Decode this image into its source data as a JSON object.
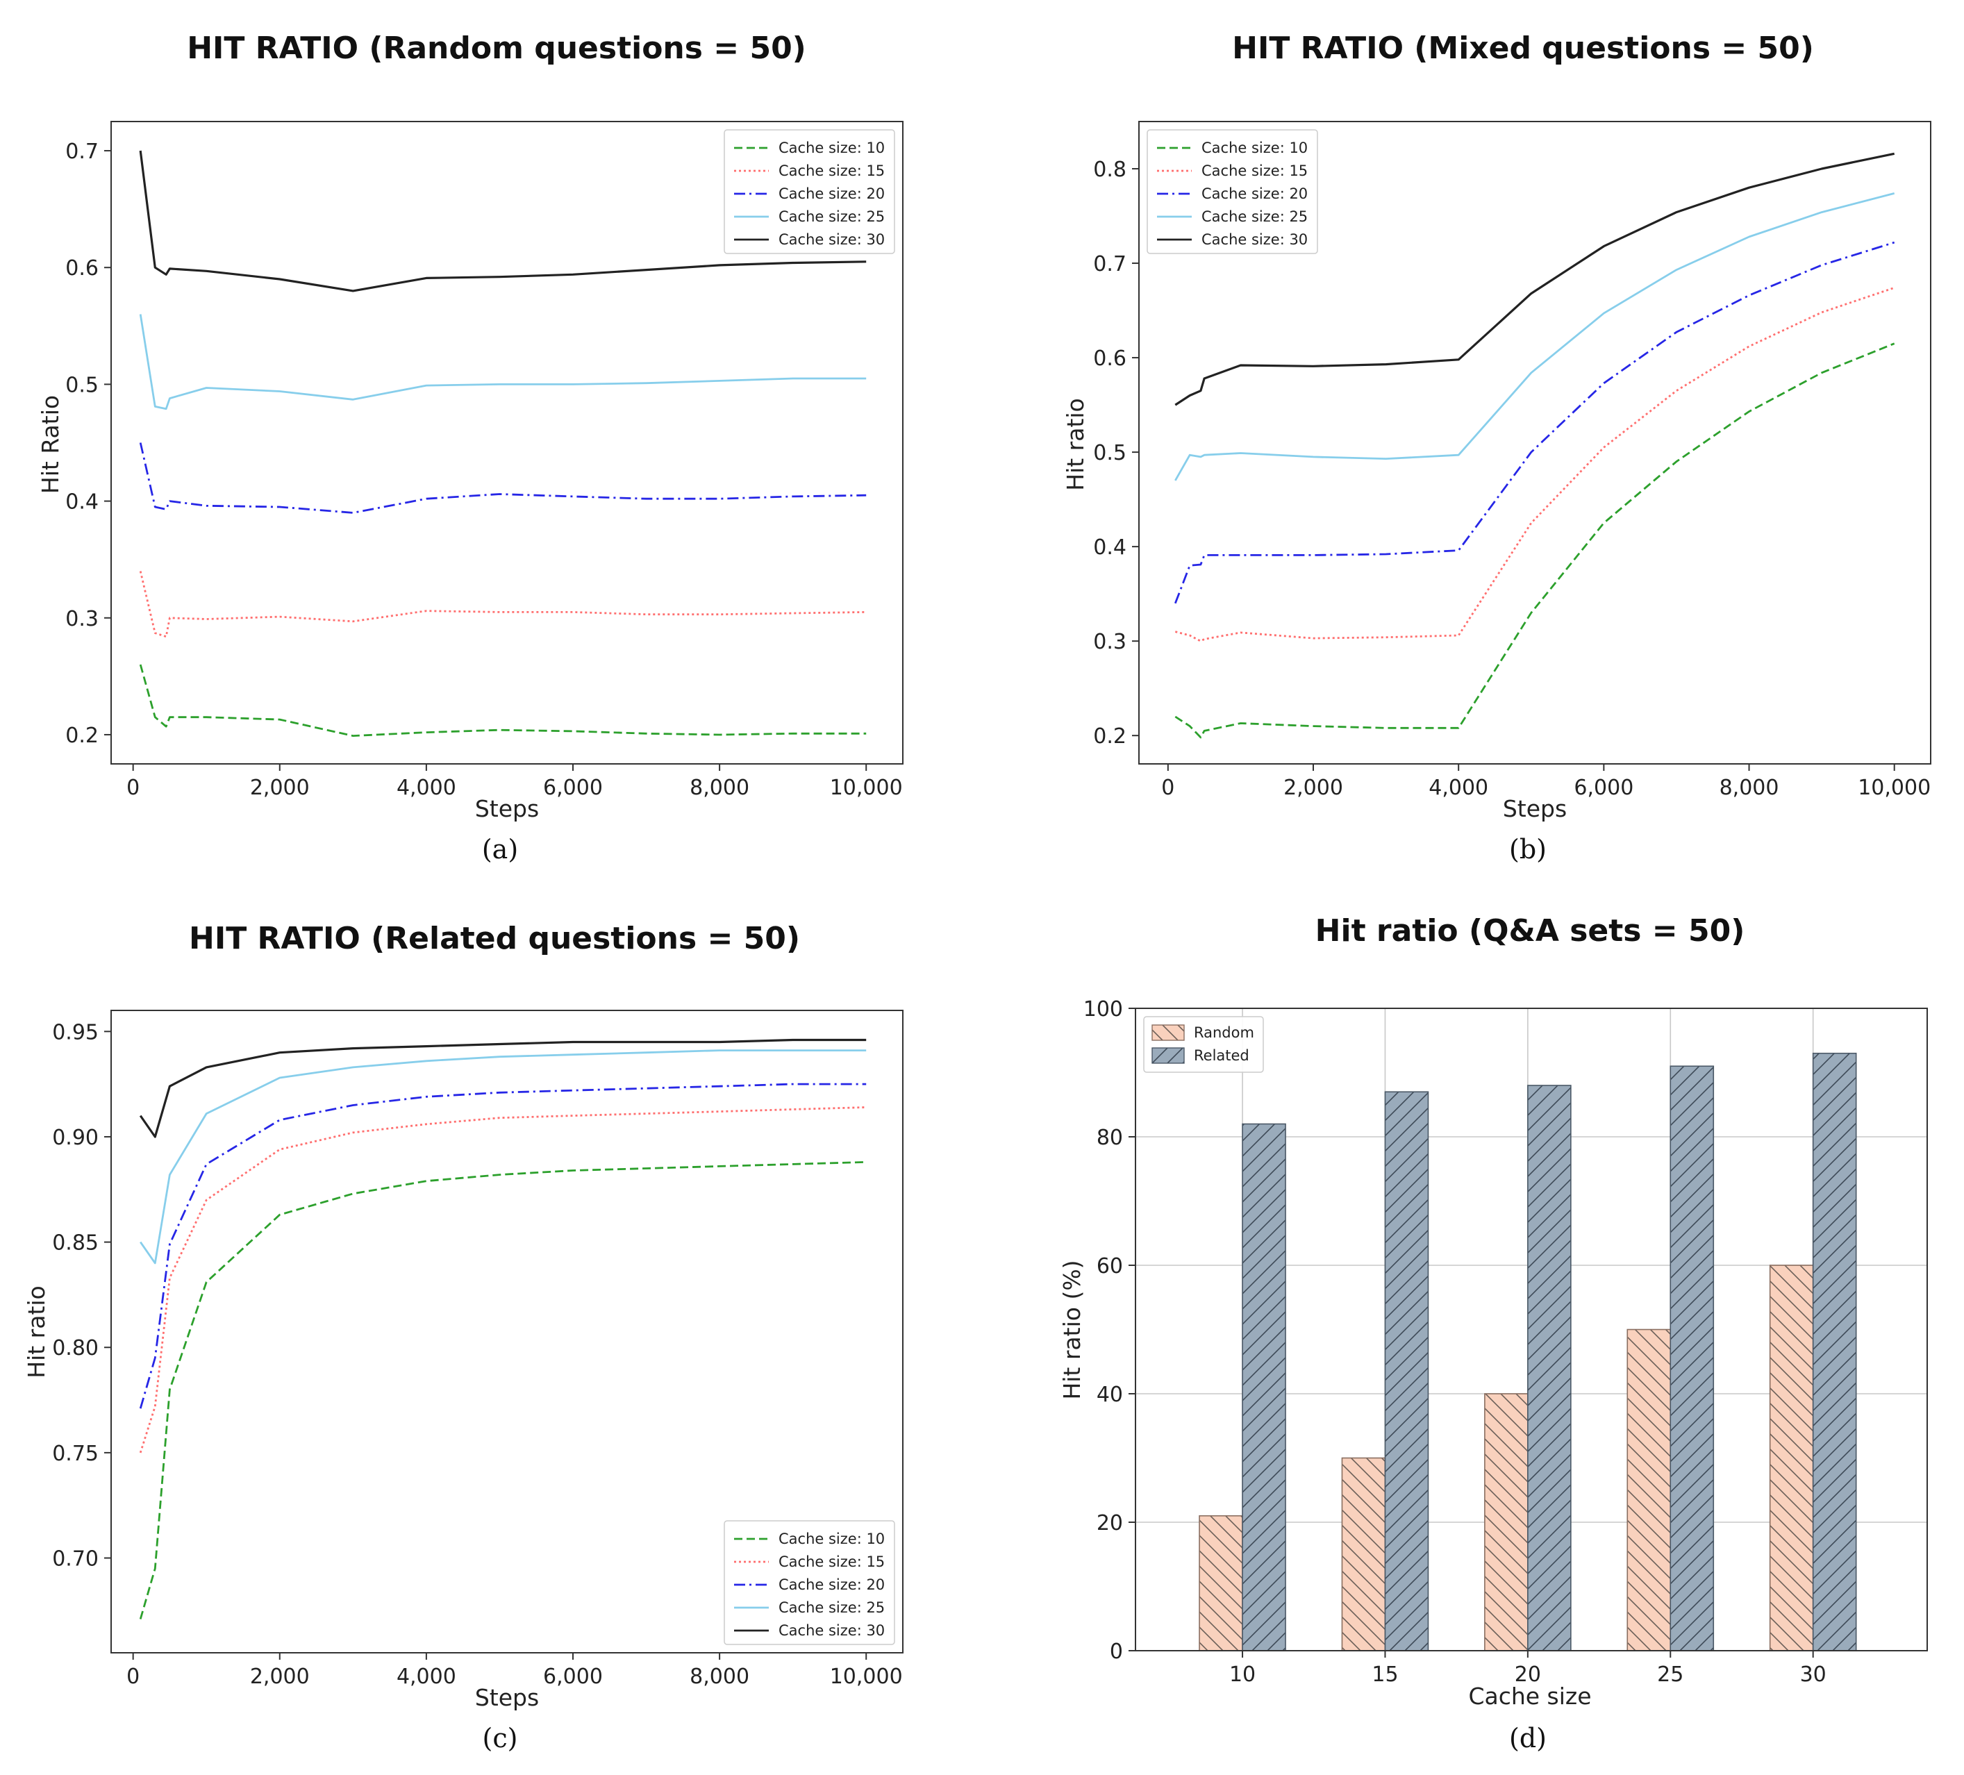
{
  "colors": {
    "cache_10": "#2ca02c",
    "cache_15": "#ff6f6f",
    "cache_20": "#2626e6",
    "cache_25": "#87ceeb",
    "cache_30": "#222222",
    "random_bar": "#f9d1bd",
    "related_bar": "#9aabbb"
  },
  "chart_data": [
    {
      "id": "a",
      "type": "line",
      "caption": "(a)",
      "title": "HIT RATIO (Random questions = 50)",
      "xlabel": "Steps",
      "ylabel": "Hit Ratio",
      "xlim": [
        -300,
        10500
      ],
      "ylim": [
        0.175,
        0.725
      ],
      "xticks": [
        0,
        2000,
        4000,
        6000,
        8000,
        10000
      ],
      "xtick_labels": [
        "0",
        "2,000",
        "4,000",
        "6,000",
        "8,000",
        "10,000"
      ],
      "yticks": [
        0.2,
        0.3,
        0.4,
        0.5,
        0.6,
        0.7
      ],
      "ytick_labels": [
        "0.2",
        "0.3",
        "0.4",
        "0.5",
        "0.6",
        "0.7"
      ],
      "legend_position": "upper right",
      "x": [
        100,
        300,
        450,
        500,
        1000,
        2000,
        3000,
        4000,
        5000,
        6000,
        7000,
        8000,
        9000,
        10000
      ],
      "series": [
        {
          "name": "Cache size: 10",
          "style": "dashed",
          "values": [
            0.26,
            0.215,
            0.207,
            0.215,
            0.215,
            0.213,
            0.199,
            0.202,
            0.204,
            0.203,
            0.201,
            0.2,
            0.201,
            0.201
          ]
        },
        {
          "name": "Cache size: 15",
          "style": "dotted",
          "values": [
            0.34,
            0.287,
            0.284,
            0.3,
            0.299,
            0.301,
            0.297,
            0.306,
            0.305,
            0.305,
            0.303,
            0.303,
            0.304,
            0.305
          ]
        },
        {
          "name": "Cache size: 20",
          "style": "dashdot",
          "values": [
            0.45,
            0.395,
            0.393,
            0.4,
            0.396,
            0.395,
            0.39,
            0.402,
            0.406,
            0.404,
            0.402,
            0.402,
            0.404,
            0.405
          ]
        },
        {
          "name": "Cache size: 25",
          "style": "solid",
          "values": [
            0.56,
            0.481,
            0.479,
            0.488,
            0.497,
            0.494,
            0.487,
            0.499,
            0.5,
            0.5,
            0.501,
            0.503,
            0.505,
            0.505
          ]
        },
        {
          "name": "Cache size: 30",
          "style": "solid",
          "values": [
            0.7,
            0.6,
            0.594,
            0.599,
            0.597,
            0.59,
            0.58,
            0.591,
            0.592,
            0.594,
            0.598,
            0.602,
            0.604,
            0.605
          ]
        }
      ]
    },
    {
      "id": "b",
      "type": "line",
      "caption": "(b)",
      "title": "HIT RATIO (Mixed questions = 50)",
      "xlabel": "Steps",
      "ylabel": "Hit ratio",
      "xlim": [
        -400,
        10500
      ],
      "ylim": [
        0.17,
        0.85
      ],
      "xticks": [
        0,
        2000,
        4000,
        6000,
        8000,
        10000
      ],
      "xtick_labels": [
        "0",
        "2,000",
        "4,000",
        "6,000",
        "8,000",
        "10,000"
      ],
      "yticks": [
        0.2,
        0.3,
        0.4,
        0.5,
        0.6,
        0.7,
        0.8
      ],
      "ytick_labels": [
        "0.2",
        "0.3",
        "0.4",
        "0.5",
        "0.6",
        "0.7",
        "0.8"
      ],
      "legend_position": "upper left",
      "x": [
        100,
        300,
        450,
        500,
        1000,
        2000,
        3000,
        4000,
        5000,
        6000,
        7000,
        8000,
        9000,
        10000
      ],
      "series": [
        {
          "name": "Cache size: 10",
          "style": "dashed",
          "values": [
            0.22,
            0.21,
            0.198,
            0.205,
            0.213,
            0.21,
            0.208,
            0.208,
            0.33,
            0.425,
            0.49,
            0.543,
            0.584,
            0.615
          ]
        },
        {
          "name": "Cache size: 15",
          "style": "dotted",
          "values": [
            0.31,
            0.306,
            0.3,
            0.302,
            0.309,
            0.303,
            0.304,
            0.306,
            0.425,
            0.505,
            0.565,
            0.612,
            0.648,
            0.674
          ]
        },
        {
          "name": "Cache size: 20",
          "style": "dashdot",
          "values": [
            0.34,
            0.38,
            0.381,
            0.391,
            0.391,
            0.391,
            0.392,
            0.396,
            0.5,
            0.573,
            0.627,
            0.666,
            0.698,
            0.722
          ]
        },
        {
          "name": "Cache size: 25",
          "style": "solid",
          "values": [
            0.47,
            0.497,
            0.495,
            0.497,
            0.499,
            0.495,
            0.493,
            0.497,
            0.584,
            0.647,
            0.693,
            0.728,
            0.754,
            0.774
          ]
        },
        {
          "name": "Cache size: 30",
          "style": "solid",
          "values": [
            0.55,
            0.56,
            0.565,
            0.578,
            0.592,
            0.591,
            0.593,
            0.598,
            0.668,
            0.718,
            0.754,
            0.78,
            0.8,
            0.816
          ]
        }
      ]
    },
    {
      "id": "c",
      "type": "line",
      "caption": "(c)",
      "title": "HIT RATIO (Related questions = 50)",
      "xlabel": "Steps",
      "ylabel": "Hit ratio",
      "xlim": [
        -300,
        10500
      ],
      "ylim": [
        0.655,
        0.96
      ],
      "xticks": [
        0,
        2000,
        4000,
        6000,
        8000,
        10000
      ],
      "xtick_labels": [
        "0",
        "2,000",
        "4,000",
        "6,000",
        "8,000",
        "10,000"
      ],
      "yticks": [
        0.7,
        0.75,
        0.8,
        0.85,
        0.9,
        0.95
      ],
      "ytick_labels": [
        "0.70",
        "0.75",
        "0.80",
        "0.85",
        "0.90",
        "0.95"
      ],
      "legend_position": "lower right",
      "x": [
        100,
        300,
        500,
        1000,
        2000,
        3000,
        4000,
        5000,
        6000,
        7000,
        8000,
        9000,
        10000
      ],
      "series": [
        {
          "name": "Cache size: 10",
          "style": "dashed",
          "values": [
            0.671,
            0.695,
            0.78,
            0.831,
            0.863,
            0.873,
            0.879,
            0.882,
            0.884,
            0.885,
            0.886,
            0.887,
            0.888
          ]
        },
        {
          "name": "Cache size: 15",
          "style": "dotted",
          "values": [
            0.75,
            0.772,
            0.833,
            0.87,
            0.894,
            0.902,
            0.906,
            0.909,
            0.91,
            0.911,
            0.912,
            0.913,
            0.914
          ]
        },
        {
          "name": "Cache size: 20",
          "style": "dashdot",
          "values": [
            0.771,
            0.795,
            0.849,
            0.887,
            0.908,
            0.915,
            0.919,
            0.921,
            0.922,
            0.923,
            0.924,
            0.925,
            0.925
          ]
        },
        {
          "name": "Cache size: 25",
          "style": "solid",
          "values": [
            0.85,
            0.84,
            0.882,
            0.911,
            0.928,
            0.933,
            0.936,
            0.938,
            0.939,
            0.94,
            0.941,
            0.941,
            0.941
          ]
        },
        {
          "name": "Cache size: 30",
          "style": "solid",
          "values": [
            0.91,
            0.9,
            0.924,
            0.933,
            0.94,
            0.942,
            0.943,
            0.944,
            0.945,
            0.945,
            0.945,
            0.946,
            0.946
          ]
        }
      ]
    },
    {
      "id": "d",
      "type": "bar",
      "caption": "(d)",
      "title": "Hit ratio (Q&A sets = 50)",
      "xlabel": "Cache size",
      "ylabel": "Hit ratio (%)",
      "ylim": [
        0,
        100
      ],
      "yticks": [
        0,
        20,
        40,
        60,
        80,
        100
      ],
      "ytick_labels": [
        "0",
        "20",
        "40",
        "60",
        "80",
        "100"
      ],
      "grid": true,
      "legend_position": "upper left",
      "categories": [
        "10",
        "15",
        "20",
        "25",
        "30"
      ],
      "series": [
        {
          "name": "Random",
          "values": [
            21,
            30,
            40,
            50,
            60
          ]
        },
        {
          "name": "Related",
          "values": [
            82,
            87,
            88,
            91,
            93
          ]
        }
      ]
    }
  ]
}
